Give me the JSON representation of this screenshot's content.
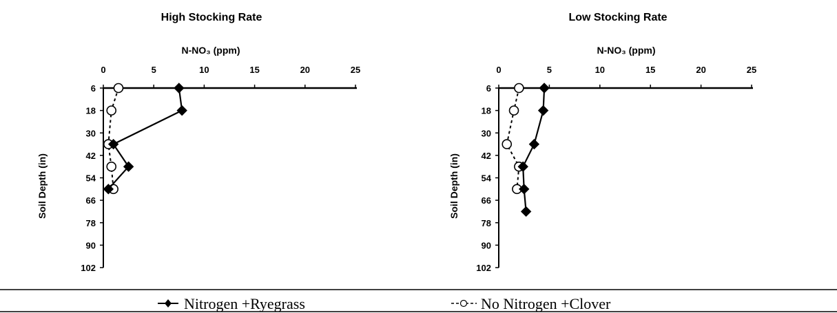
{
  "chart_data": [
    {
      "type": "line",
      "title": "High Stocking Rate",
      "xlabel": "N-NO₃ (ppm)",
      "ylabel": "Soil Depth (in)",
      "x_ticks": [
        "0",
        "5",
        "10",
        "15",
        "20",
        "25"
      ],
      "y_ticks": [
        "6",
        "18",
        "30",
        "42",
        "54",
        "66",
        "78",
        "90",
        "102"
      ],
      "xlim": [
        0,
        25
      ],
      "ylim": [
        6,
        102
      ],
      "x_axis_position": "top",
      "y_axis_inverted": true,
      "series": [
        {
          "name": "Nitrogen +Ryegrass",
          "marker": "filled-diamond",
          "line": "solid",
          "points": [
            [
              7.5,
              6
            ],
            [
              7.8,
              18
            ],
            [
              1.0,
              36
            ],
            [
              2.5,
              48
            ],
            [
              0.5,
              60
            ]
          ]
        },
        {
          "name": "No Nitrogen +Clover",
          "marker": "open-circle",
          "line": "dashed",
          "points": [
            [
              1.5,
              6
            ],
            [
              0.8,
              18
            ],
            [
              0.5,
              36
            ],
            [
              0.8,
              48
            ],
            [
              1.0,
              60
            ]
          ]
        }
      ]
    },
    {
      "type": "line",
      "title": "Low Stocking Rate",
      "xlabel": "N-NO₃ (ppm)",
      "ylabel": "Soil Depth (in)",
      "x_ticks": [
        "0",
        "5",
        "10",
        "15",
        "20",
        "25"
      ],
      "y_ticks": [
        "6",
        "18",
        "30",
        "42",
        "54",
        "66",
        "78",
        "90",
        "102"
      ],
      "xlim": [
        0,
        25
      ],
      "ylim": [
        6,
        102
      ],
      "x_axis_position": "top",
      "y_axis_inverted": true,
      "series": [
        {
          "name": "Nitrogen +Ryegrass",
          "marker": "filled-diamond",
          "line": "solid",
          "points": [
            [
              4.5,
              6
            ],
            [
              4.4,
              18
            ],
            [
              3.5,
              36
            ],
            [
              2.4,
              48
            ],
            [
              2.5,
              60
            ],
            [
              2.7,
              72
            ]
          ]
        },
        {
          "name": "No Nitrogen +Clover",
          "marker": "open-circle",
          "line": "dashed",
          "points": [
            [
              2.0,
              6
            ],
            [
              1.5,
              18
            ],
            [
              0.8,
              36
            ],
            [
              2.0,
              48
            ],
            [
              1.8,
              60
            ]
          ]
        }
      ]
    }
  ],
  "legend": {
    "items": [
      {
        "symbol": "—◆—",
        "label": "Nitrogen +Ryegrass"
      },
      {
        "symbol": "--○--",
        "label": "No Nitrogen +Clover"
      }
    ]
  }
}
